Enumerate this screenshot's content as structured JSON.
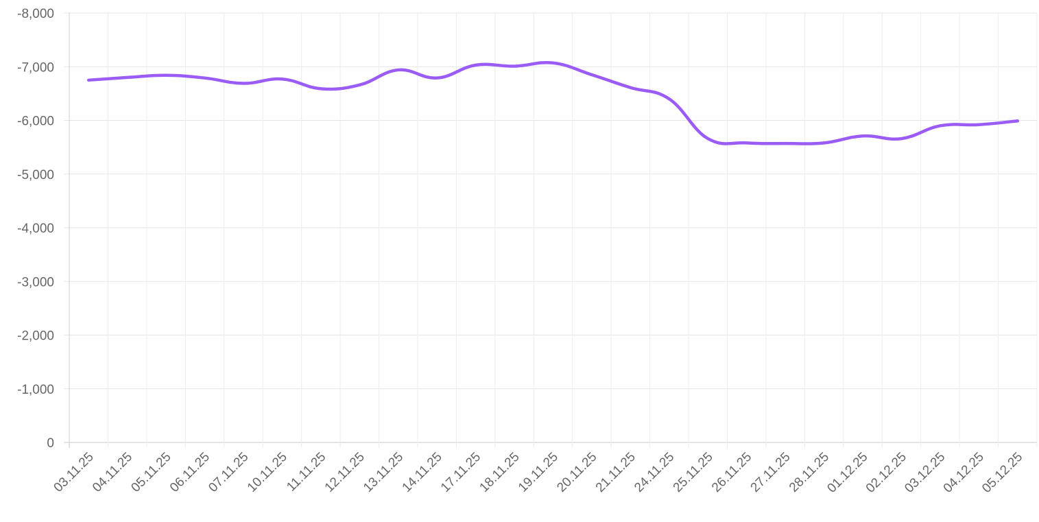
{
  "chart_data": {
    "type": "line",
    "title": "",
    "xlabel": "",
    "ylabel": "",
    "x": [
      "03.11.25",
      "04.11.25",
      "05.11.25",
      "06.11.25",
      "07.11.25",
      "10.11.25",
      "11.11.25",
      "12.11.25",
      "13.11.25",
      "14.11.25",
      "17.11.25",
      "18.11.25",
      "19.11.25",
      "20.11.25",
      "21.11.25",
      "24.11.25",
      "25.11.25",
      "26.11.25",
      "27.11.25",
      "28.11.25",
      "01.12.25",
      "02.12.25",
      "03.12.25",
      "04.12.25",
      "05.12.25"
    ],
    "series": [
      {
        "name": "",
        "color": "#9b5cf6",
        "values": [
          -6750,
          -6800,
          -6840,
          -6790,
          -6690,
          -6770,
          -6590,
          -6660,
          -6940,
          -6790,
          -7030,
          -7010,
          -7070,
          -6850,
          -6610,
          -6400,
          -5660,
          -5580,
          -5570,
          -5580,
          -5710,
          -5660,
          -5900,
          -5920,
          -5990
        ]
      }
    ],
    "ylim": [
      0,
      -8000
    ],
    "y_axis_inverted": true,
    "yticks": [
      {
        "value": -8000,
        "label": "-8,000"
      },
      {
        "value": -7000,
        "label": "-7,000"
      },
      {
        "value": -6000,
        "label": "-6,000"
      },
      {
        "value": -5000,
        "label": "-5,000"
      },
      {
        "value": -4000,
        "label": "-4,000"
      },
      {
        "value": -3000,
        "label": "-3,000"
      },
      {
        "value": -2000,
        "label": "-2,000"
      },
      {
        "value": -1000,
        "label": "-1,000"
      },
      {
        "value": 0,
        "label": "0"
      }
    ],
    "grid": true,
    "legend": "none"
  }
}
